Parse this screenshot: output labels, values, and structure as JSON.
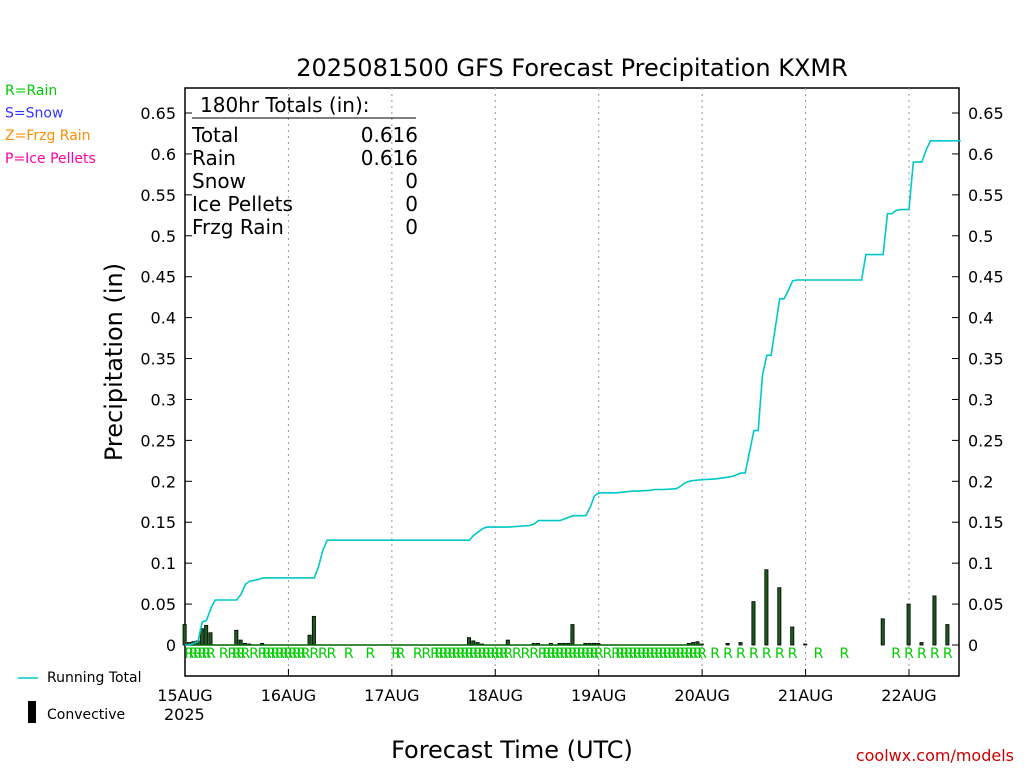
{
  "chart_data": {
    "type": "bar",
    "title": "2025081500 GFS Forecast Precipitation KXMR",
    "xlabel": "Forecast Time (UTC)",
    "ylabel": "Precipitation (in)",
    "ylim": [
      -0.02,
      0.66
    ],
    "yticks": [
      0,
      0.05,
      0.1,
      0.15,
      0.2,
      0.25,
      0.3,
      0.35,
      0.4,
      0.45,
      0.5,
      0.55,
      0.6,
      0.65
    ],
    "ytick_labels": [
      "0",
      "0.05",
      "0.1",
      "0.15",
      "0.2",
      "0.25",
      "0.3",
      "0.35",
      "0.4",
      "0.45",
      "0.5",
      "0.55",
      "0.6",
      "0.65"
    ],
    "x_unit": "forecast hour",
    "xlim": [
      0,
      180
    ],
    "xticks": [
      0,
      24,
      48,
      72,
      96,
      120,
      144,
      168
    ],
    "xtick_labels": [
      "15AUG",
      "16AUG",
      "17AUG",
      "18AUG",
      "19AUG",
      "20AUG",
      "21AUG",
      "22AUG"
    ],
    "year_label": "2025",
    "grid": "vertical dotted at day boundaries",
    "series": [
      {
        "name": "Running Total",
        "type": "line",
        "color": "#00c8c8",
        "x": [
          0,
          1,
          2,
          3,
          4,
          5,
          6,
          7,
          12,
          13,
          14,
          15,
          17,
          18,
          30,
          31,
          32,
          33,
          34,
          48,
          54,
          60,
          66,
          67,
          68,
          69,
          70,
          72,
          75,
          80,
          81,
          82,
          87,
          88,
          90,
          93,
          94,
          95,
          96,
          100,
          104,
          105,
          108,
          109,
          111,
          114,
          115,
          116,
          117,
          118,
          120,
          123,
          126,
          127,
          128,
          129,
          130,
          132,
          133,
          134,
          135,
          136,
          138,
          139,
          140,
          141,
          142,
          150,
          156,
          157,
          158,
          162,
          163,
          164,
          165,
          166,
          168,
          169,
          171,
          172,
          173,
          174,
          175,
          176,
          180
        ],
        "y": [
          0,
          0,
          0.002,
          0.004,
          0.028,
          0.03,
          0.045,
          0.055,
          0.055,
          0.062,
          0.074,
          0.078,
          0.08,
          0.082,
          0.082,
          0.096,
          0.116,
          0.128,
          0.128,
          0.128,
          0.128,
          0.128,
          0.128,
          0.134,
          0.138,
          0.142,
          0.144,
          0.144,
          0.144,
          0.146,
          0.148,
          0.152,
          0.152,
          0.154,
          0.158,
          0.158,
          0.168,
          0.182,
          0.186,
          0.186,
          0.188,
          0.188,
          0.189,
          0.19,
          0.19,
          0.191,
          0.194,
          0.198,
          0.2,
          0.201,
          0.202,
          0.203,
          0.205,
          0.206,
          0.208,
          0.21,
          0.21,
          0.262,
          0.262,
          0.33,
          0.354,
          0.354,
          0.423,
          0.423,
          0.433,
          0.445,
          0.446,
          0.446,
          0.446,
          0.446,
          0.477,
          0.477,
          0.527,
          0.527,
          0.531,
          0.532,
          0.532,
          0.59,
          0.59,
          0.605,
          0.616,
          0.616,
          0.616,
          0.616,
          0.616
        ]
      },
      {
        "name": "Convective",
        "type": "bar",
        "color": "#000000",
        "x": [
          0,
          1,
          2,
          3,
          4,
          5,
          6,
          12,
          13,
          14,
          15,
          18,
          29,
          30,
          66,
          67,
          68,
          69,
          75,
          81,
          82,
          85,
          87,
          88,
          89,
          90,
          93,
          94,
          95,
          96,
          117,
          118,
          119,
          120,
          126,
          129,
          132,
          135,
          138,
          141,
          144,
          162,
          168,
          171,
          174,
          177
        ],
        "y": [
          0.025,
          0.003,
          0.004,
          0.005,
          0.02,
          0.024,
          0.015,
          0.018,
          0.006,
          0.002,
          0.001,
          0.002,
          0.012,
          0.035,
          0.009,
          0.005,
          0.003,
          0.001,
          0.006,
          0.002,
          0.002,
          0.002,
          0.002,
          0.002,
          0.002,
          0.025,
          0.002,
          0.002,
          0.002,
          0.002,
          0.002,
          0.003,
          0.004,
          0.001,
          0.002,
          0.003,
          0.053,
          0.092,
          0.07,
          0.022,
          0.001,
          0.032,
          0.05,
          0.003,
          0.06,
          0.025
        ]
      }
    ],
    "precip_type_marks": {
      "symbol": "R",
      "hours": [
        1,
        2,
        3,
        4,
        5,
        6,
        9,
        11,
        12,
        13,
        14,
        16,
        18,
        19,
        20,
        21,
        22,
        23,
        24,
        25,
        26,
        27,
        28,
        30,
        32,
        34,
        38,
        43,
        49,
        50,
        54,
        56,
        58,
        59,
        60,
        61,
        62,
        63,
        64,
        65,
        66,
        67,
        68,
        69,
        70,
        71,
        72,
        73,
        74,
        75,
        77,
        79,
        81,
        83,
        84,
        85,
        86,
        87,
        88,
        89,
        90,
        91,
        92,
        93,
        94,
        95,
        96,
        98,
        100,
        101,
        102,
        103,
        104,
        105,
        106,
        107,
        108,
        109,
        110,
        111,
        112,
        113,
        114,
        115,
        116,
        117,
        118,
        119,
        120,
        123,
        126,
        129,
        132,
        135,
        138,
        141,
        147,
        153,
        165,
        168,
        171,
        174,
        177
      ]
    },
    "legend": [
      {
        "label": "R=Rain",
        "color": "#00cc00"
      },
      {
        "label": "S=Snow",
        "color": "#3333ff"
      },
      {
        "label": "Z=Frzg Rain",
        "color": "#ff8c00"
      },
      {
        "label": "P=Ice Pellets",
        "color": "#ff00aa"
      },
      {
        "label": "Running Total",
        "color": "#00c8c8"
      },
      {
        "label": "Convective",
        "color": "#000000"
      }
    ],
    "totals_box": {
      "heading": "180hr Totals (in):",
      "rows": [
        {
          "label": "Total",
          "value": "0.616"
        },
        {
          "label": "Rain",
          "value": "0.616"
        },
        {
          "label": "Snow",
          "value": "0"
        },
        {
          "label": "Ice Pellets",
          "value": "0"
        },
        {
          "label": "Frzg Rain",
          "value": "0"
        }
      ]
    }
  },
  "credit": "coolwx.com/models"
}
